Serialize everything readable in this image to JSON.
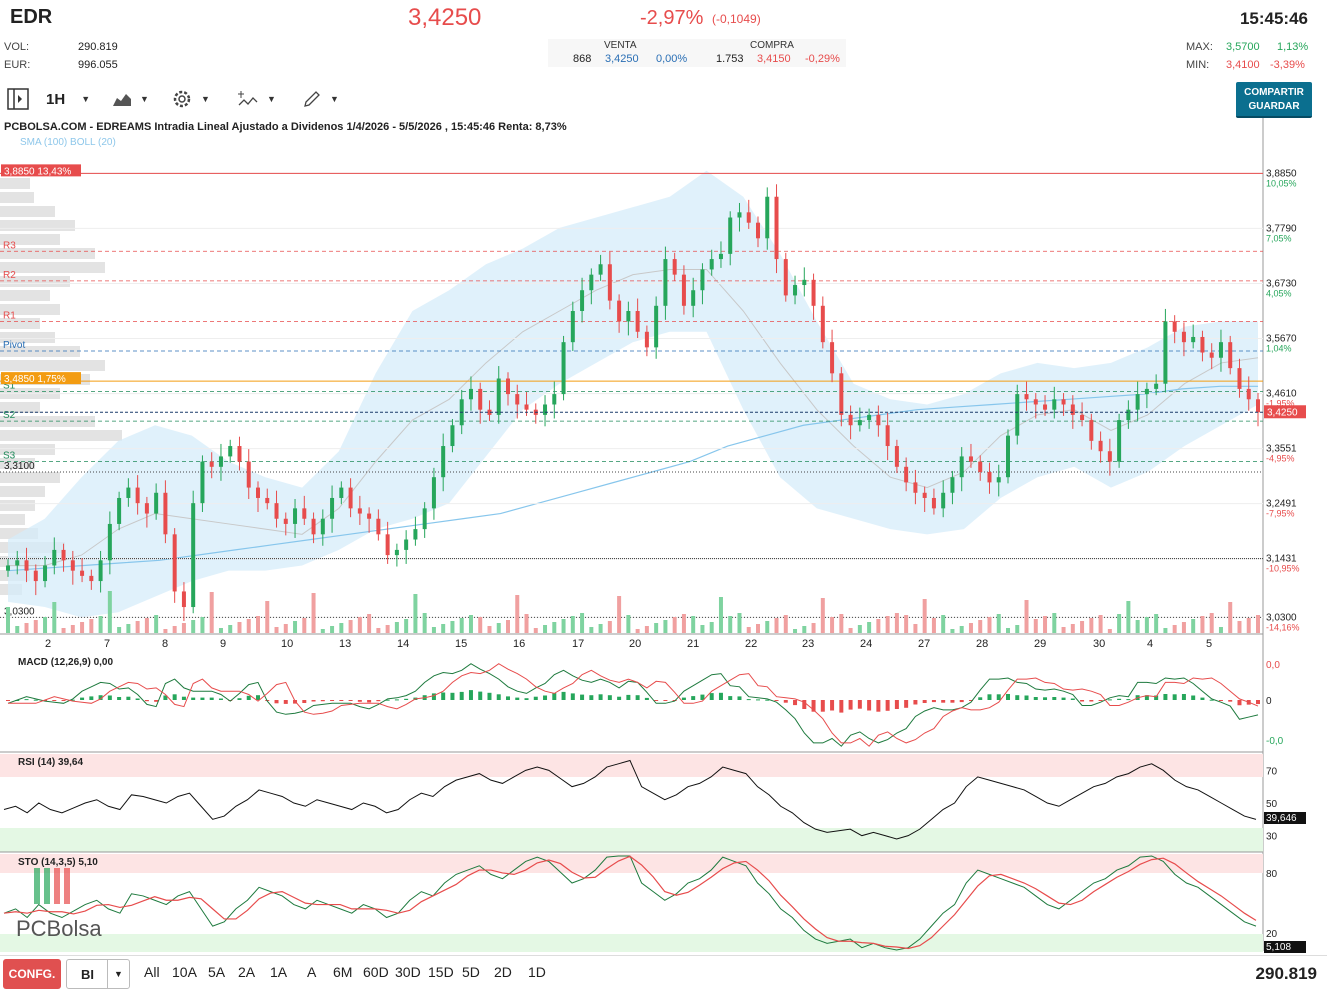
{
  "header": {
    "symbol": "EDR",
    "price": "3,4250",
    "change_pct": "-2,97%",
    "change_abs": "(-0,1049)",
    "time": "15:45:46",
    "vol_label": "VOL:",
    "vol_value": "290.819",
    "eur_label": "EUR:",
    "eur_value": "996.055",
    "book": {
      "sell_label": "VENTA",
      "buy_label": "COMPRA",
      "sell_qty": "868",
      "sell_price": "3,4250",
      "sell_pct": "0,00%",
      "buy_qty": "1.753",
      "buy_price": "3,4150",
      "buy_pct": "-0,29%"
    },
    "max_label": "MAX:",
    "max_value": "3,5700",
    "max_pct": "1,13%",
    "min_label": "MIN:",
    "min_value": "3,4100",
    "min_pct": "-3,39%"
  },
  "toolbar": {
    "interval": "1H",
    "share_line1": "COMPARTIR",
    "share_line2": "GUARDAR"
  },
  "colors": {
    "up": "#26a65b",
    "down": "#e74c4c",
    "boll_fill": "#d6ecfa",
    "sma": "#87c6ec",
    "accent": "#0b6f8f"
  },
  "chart_data": {
    "type": "candlestick",
    "title": "PCBOLSA.COM - EDREAMS Intradia Lineal Ajustado a Dividenos 1/4/2026 - 5/5/2026 , 15:45:46 Renta: 8,73%",
    "indicator_label": "SMA (100) BOLL (20)",
    "ylim": [
      3.0,
      3.93
    ],
    "x_tick_labels": [
      "2",
      "7",
      "8",
      "9",
      "10",
      "13",
      "14",
      "15",
      "16",
      "17",
      "20",
      "21",
      "22",
      "23",
      "24",
      "27",
      "28",
      "29",
      "30",
      "4",
      "5"
    ],
    "y_ticks": [
      {
        "value": 3.885,
        "label": "3,8850",
        "pct": "10,05%"
      },
      {
        "value": 3.779,
        "label": "3,7790",
        "pct": "7,05%"
      },
      {
        "value": 3.673,
        "label": "3,6730",
        "pct": "4,05%"
      },
      {
        "value": 3.567,
        "label": "3,5670",
        "pct": "1,04%"
      },
      {
        "value": 3.461,
        "label": "3,4610",
        "pct": "-1,95%"
      },
      {
        "value": 3.3551,
        "label": "3,3551",
        "pct": "-4,95%"
      },
      {
        "value": 3.2491,
        "label": "3,2491",
        "pct": "-7,95%"
      },
      {
        "value": 3.1431,
        "label": "3,1431",
        "pct": "-10,95%"
      },
      {
        "value": 3.03,
        "label": "3,0300",
        "pct": "-14,16%"
      }
    ],
    "current_price_label": "3,4250",
    "current_price": 3.425,
    "levels": [
      {
        "name": "R3",
        "value": 3.735
      },
      {
        "name": "R2",
        "value": 3.678
      },
      {
        "name": "R1",
        "value": 3.6
      },
      {
        "name": "Pivot",
        "value": 3.543
      },
      {
        "name": "S1",
        "value": 3.465
      },
      {
        "name": "S2",
        "value": 3.408
      },
      {
        "name": "S3",
        "value": 3.33
      }
    ],
    "max_marker": {
      "label": "3,8850",
      "pct": "13,43%",
      "value": 3.885
    },
    "ref_marker": {
      "label": "3,4850",
      "pct": "1,75%",
      "value": 3.485
    },
    "left_labels": [
      {
        "label": "3,3100",
        "value": 3.31
      },
      {
        "label": "3,0300",
        "value": 3.03
      }
    ],
    "closes": [
      3.13,
      3.14,
      3.12,
      3.1,
      3.13,
      3.16,
      3.14,
      3.12,
      3.11,
      3.1,
      3.14,
      3.21,
      3.26,
      3.28,
      3.25,
      3.23,
      3.27,
      3.19,
      3.08,
      3.05,
      3.25,
      3.33,
      3.32,
      3.34,
      3.36,
      3.33,
      3.28,
      3.26,
      3.25,
      3.22,
      3.21,
      3.24,
      3.22,
      3.19,
      3.22,
      3.26,
      3.28,
      3.24,
      3.23,
      3.22,
      3.19,
      3.15,
      3.16,
      3.18,
      3.2,
      3.24,
      3.3,
      3.36,
      3.4,
      3.45,
      3.47,
      3.43,
      3.42,
      3.49,
      3.46,
      3.44,
      3.43,
      3.42,
      3.44,
      3.46,
      3.56,
      3.62,
      3.66,
      3.69,
      3.71,
      3.64,
      3.6,
      3.62,
      3.58,
      3.55,
      3.63,
      3.72,
      3.69,
      3.63,
      3.66,
      3.7,
      3.72,
      3.73,
      3.8,
      3.81,
      3.79,
      3.76,
      3.84,
      3.72,
      3.65,
      3.67,
      3.68,
      3.63,
      3.56,
      3.5,
      3.42,
      3.4,
      3.41,
      3.42,
      3.4,
      3.36,
      3.32,
      3.29,
      3.27,
      3.26,
      3.24,
      3.27,
      3.3,
      3.34,
      3.33,
      3.31,
      3.29,
      3.3,
      3.38,
      3.46,
      3.45,
      3.44,
      3.43,
      3.45,
      3.44,
      3.42,
      3.41,
      3.37,
      3.35,
      3.33,
      3.41,
      3.43,
      3.46,
      3.47,
      3.48,
      3.6,
      3.58,
      3.56,
      3.57,
      3.54,
      3.53,
      3.56,
      3.51,
      3.47,
      3.45,
      3.425
    ],
    "sma100": [
      3.12,
      3.125,
      3.13,
      3.135,
      3.14,
      3.15,
      3.16,
      3.17,
      3.18,
      3.19,
      3.2,
      3.21,
      3.22,
      3.23,
      3.25,
      3.27,
      3.29,
      3.31,
      3.33,
      3.36,
      3.38,
      3.4,
      3.41,
      3.42,
      3.43,
      3.435,
      3.44,
      3.445,
      3.45,
      3.455,
      3.46,
      3.47,
      3.475,
      3.475
    ],
    "boll_mid": [
      3.13,
      3.13,
      3.15,
      3.2,
      3.23,
      3.22,
      3.21,
      3.2,
      3.19,
      3.24,
      3.33,
      3.41,
      3.45,
      3.52,
      3.58,
      3.62,
      3.66,
      3.69,
      3.7,
      3.7,
      3.62,
      3.52,
      3.43,
      3.36,
      3.3,
      3.28,
      3.31,
      3.38,
      3.42,
      3.43,
      3.39,
      3.42,
      3.48,
      3.52,
      3.53
    ],
    "boll_upper": [
      3.18,
      3.22,
      3.3,
      3.37,
      3.4,
      3.38,
      3.33,
      3.3,
      3.28,
      3.35,
      3.5,
      3.62,
      3.66,
      3.71,
      3.74,
      3.78,
      3.8,
      3.82,
      3.84,
      3.89,
      3.84,
      3.73,
      3.6,
      3.48,
      3.45,
      3.44,
      3.46,
      3.5,
      3.52,
      3.51,
      3.52,
      3.55,
      3.59,
      3.6,
      3.6
    ],
    "boll_lower": [
      3.06,
      3.05,
      3.03,
      3.04,
      3.07,
      3.1,
      3.12,
      3.12,
      3.13,
      3.16,
      3.2,
      3.22,
      3.25,
      3.34,
      3.43,
      3.48,
      3.52,
      3.56,
      3.58,
      3.58,
      3.43,
      3.3,
      3.24,
      3.22,
      3.2,
      3.19,
      3.2,
      3.26,
      3.3,
      3.32,
      3.28,
      3.31,
      3.36,
      3.4,
      3.44
    ],
    "volume_note": "relative bar heights",
    "macd": {
      "label": "MACD (12,26,9)",
      "value": "0,00",
      "y_labels": [
        "0,0",
        "0",
        "-0,0"
      ]
    },
    "rsi": {
      "label": "RSI (14)",
      "value": "39,64",
      "current": "39,646",
      "levels": [
        "70",
        "50",
        "30"
      ],
      "series": [
        46,
        48,
        44,
        50,
        46,
        44,
        47,
        50,
        52,
        48,
        46,
        55,
        54,
        52,
        50,
        54,
        56,
        48,
        40,
        42,
        48,
        52,
        58,
        56,
        54,
        50,
        48,
        52,
        50,
        48,
        46,
        50,
        48,
        44,
        46,
        52,
        56,
        54,
        60,
        64,
        66,
        68,
        64,
        62,
        66,
        70,
        72,
        70,
        65,
        60,
        62,
        66,
        72,
        74,
        76,
        60,
        56,
        52,
        55,
        60,
        62,
        66,
        72,
        70,
        68,
        60,
        55,
        48,
        44,
        38,
        34,
        32,
        33,
        34,
        30,
        32,
        30,
        28,
        30,
        34,
        40,
        46,
        50,
        60,
        66,
        64,
        62,
        60,
        58,
        54,
        50,
        48,
        52,
        56,
        60,
        62,
        66,
        68,
        72,
        74,
        70,
        64,
        60,
        58,
        54,
        50,
        46,
        42,
        40
      ]
    },
    "sto": {
      "label": "STO (14,3,5)",
      "value": "5,10",
      "current": "5,108",
      "levels": [
        "80",
        "20"
      ]
    }
  },
  "bottombar": {
    "config_label": "CONFG.",
    "bi_label": "BI",
    "ranges": [
      "All",
      "10A",
      "5A",
      "2A",
      "1A",
      "A",
      "6M",
      "60D",
      "30D",
      "15D",
      "5D",
      "2D",
      "1D"
    ],
    "total_volume": "290.819"
  },
  "logo_text": "PCBolsa"
}
